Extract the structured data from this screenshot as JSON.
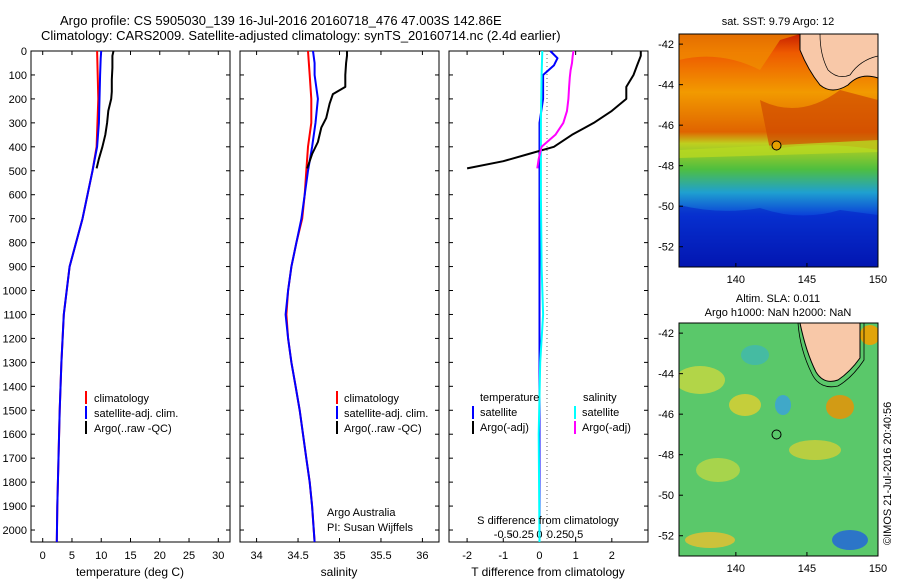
{
  "header": {
    "title_line1": "Argo profile: CS 5905030_139 16-Jul-2016 20160718_476 47.003S 142.86E",
    "title_line2": "Climatology: CARS2009. Satellite-adjusted climatology: synTS_20160714.nc (2.4d earlier)"
  },
  "colors": {
    "climatology": "#ff0000",
    "satellite": "#0000ff",
    "argo": "#000000",
    "salinity_satellite": "#00ffff",
    "salinity_argo": "#ff00ff"
  },
  "chart_data": [
    {
      "type": "line",
      "name": "temperature-profile",
      "xlabel": "temperature (deg C)",
      "ylabel": "",
      "xlim": [
        -2,
        32
      ],
      "ylim": [
        2050,
        0
      ],
      "xticks": [
        0,
        5,
        10,
        15,
        20,
        25,
        30
      ],
      "yticks": [
        0,
        100,
        200,
        300,
        400,
        500,
        600,
        700,
        800,
        900,
        1000,
        1100,
        1200,
        1300,
        1400,
        1500,
        1600,
        1700,
        1800,
        1900,
        2000
      ],
      "legend": [
        "climatology",
        "satellite-adj. clim.",
        "Argo(..raw -QC)"
      ],
      "series": [
        {
          "name": "climatology",
          "color": "#ff0000",
          "depth": [
            0,
            100,
            200,
            400,
            500,
            700,
            900,
            1100,
            1300,
            1500,
            1700,
            1900,
            2050
          ],
          "values": [
            9.3,
            9.4,
            9.5,
            9.2,
            8.5,
            6.8,
            4.6,
            3.6,
            3.2,
            2.9,
            2.7,
            2.5,
            2.4
          ]
        },
        {
          "name": "satellite-adj. clim.",
          "color": "#0000ff",
          "depth": [
            0,
            30,
            100,
            200,
            300,
            400,
            500,
            700,
            900,
            1100,
            1300,
            1500,
            1700,
            1900,
            2050
          ],
          "values": [
            10.0,
            9.9,
            9.8,
            9.7,
            9.6,
            9.3,
            8.5,
            6.8,
            4.6,
            3.6,
            3.2,
            2.9,
            2.7,
            2.5,
            2.4
          ]
        },
        {
          "name": "Argo(..raw -QC)",
          "color": "#000000",
          "depth": [
            0,
            20,
            70,
            120,
            170,
            200,
            250,
            300,
            350,
            400,
            450,
            490
          ],
          "values": [
            12.1,
            11.9,
            11.9,
            11.8,
            11.8,
            11.7,
            11.2,
            11.0,
            10.7,
            10.2,
            9.6,
            9.2
          ]
        }
      ]
    },
    {
      "type": "line",
      "name": "salinity-profile",
      "xlabel": "salinity",
      "xlim": [
        33.8,
        36.2
      ],
      "ylim": [
        2050,
        0
      ],
      "xticks": [
        34,
        34.5,
        35,
        35.5,
        36
      ],
      "xticklabels": [
        "34",
        "34.5",
        "35",
        "35.5",
        "36"
      ],
      "legend": [
        "climatology",
        "satellite-adj. clim.",
        "Argo(..raw -QC)"
      ],
      "annotation": [
        "Argo Australia",
        "PI: Susan Wijffels"
      ],
      "series": [
        {
          "name": "climatology",
          "color": "#ff0000",
          "depth": [
            0,
            100,
            200,
            300,
            400,
            500,
            600,
            700,
            800,
            900,
            1000,
            1100,
            1200,
            1300,
            1400,
            1500,
            1600,
            1700,
            1800,
            1900,
            2050
          ],
          "values": [
            34.62,
            34.64,
            34.66,
            34.66,
            34.62,
            34.6,
            34.58,
            34.55,
            34.48,
            34.42,
            34.38,
            34.36,
            34.38,
            34.42,
            34.47,
            34.52,
            34.56,
            34.6,
            34.64,
            34.67,
            34.7
          ]
        },
        {
          "name": "satellite-adj. clim.",
          "color": "#0000ff",
          "depth": [
            0,
            50,
            100,
            200,
            300,
            400,
            500,
            600,
            700,
            800,
            900,
            1000,
            1100,
            1200,
            1300,
            1400,
            1500,
            1600,
            1700,
            1800,
            1900,
            2050
          ],
          "values": [
            34.68,
            34.7,
            34.7,
            34.74,
            34.71,
            34.67,
            34.62,
            34.58,
            34.54,
            34.48,
            34.42,
            34.38,
            34.35,
            34.38,
            34.42,
            34.47,
            34.52,
            34.56,
            34.6,
            34.64,
            34.67,
            34.7
          ]
        },
        {
          "name": "Argo(..raw -QC)",
          "color": "#000000",
          "depth": [
            0,
            20,
            50,
            100,
            150,
            180,
            220,
            280,
            320,
            380,
            430,
            490
          ],
          "values": [
            35.09,
            35.09,
            35.08,
            35.07,
            35.07,
            34.92,
            34.88,
            34.84,
            34.78,
            34.74,
            34.67,
            34.61
          ]
        }
      ]
    },
    {
      "type": "line",
      "name": "difference-profile",
      "xlabel": "T difference from climatology",
      "xlabel_top": "S difference from climatology",
      "xlim": [
        -2.5,
        3.0
      ],
      "ylim": [
        2050,
        0
      ],
      "xticks": [
        -2,
        -1,
        0,
        1,
        2
      ],
      "sticks": [
        -0.5,
        -0.25,
        0,
        0.25,
        0.5
      ],
      "sticklabels": [
        "-0.5",
        "-0.25",
        "0",
        "0.25",
        "0.5"
      ],
      "legend_temperature": {
        "title": "temperature",
        "items": [
          "satellite",
          "Argo(-adj)"
        ]
      },
      "legend_salinity": {
        "title": "salinity",
        "items": [
          "satellite",
          "Argo(-adj)"
        ]
      },
      "series": [
        {
          "name": "temperature satellite",
          "color": "#0000ff",
          "depth": [
            0,
            30,
            60,
            100,
            200,
            300,
            400,
            600,
            1000,
            1400,
            2050
          ],
          "values": [
            0.3,
            0.5,
            0.4,
            0.1,
            0.1,
            0.0,
            0.0,
            0.0,
            0.0,
            0.0,
            0.0
          ]
        },
        {
          "name": "temperature Argo(-adj)",
          "color": "#000000",
          "depth": [
            0,
            20,
            60,
            100,
            150,
            200,
            250,
            300,
            350,
            400,
            430,
            460,
            490
          ],
          "values": [
            2.8,
            2.8,
            2.7,
            2.6,
            2.4,
            2.4,
            2.0,
            1.5,
            0.9,
            0.4,
            -0.3,
            -1.0,
            -2.0
          ]
        },
        {
          "name": "salinity satellite",
          "color": "#00ffff",
          "depth": [
            0,
            100,
            300,
            600,
            900,
            1100,
            1300,
            1600,
            2050
          ],
          "values": [
            0.04,
            0.03,
            0.02,
            0.02,
            0.03,
            0.05,
            0.01,
            -0.01,
            0.0
          ]
        },
        {
          "name": "salinity Argo(-adj)",
          "color": "#ff00ff",
          "depth": [
            0,
            20,
            50,
            80,
            110,
            150,
            200,
            250,
            300,
            350,
            400,
            450,
            490
          ],
          "values": [
            0.47,
            0.46,
            0.45,
            0.43,
            0.42,
            0.41,
            0.4,
            0.38,
            0.33,
            0.22,
            0.03,
            -0.01,
            -0.03
          ]
        }
      ]
    },
    {
      "type": "heatmap",
      "name": "sst-map",
      "title": "sat. SST: 9.79 Argo: 12",
      "xlim": [
        136,
        150
      ],
      "ylim": [
        -53,
        -41.5
      ],
      "xticks": [
        140,
        145,
        150
      ],
      "yticks": [
        -52,
        -50,
        -48,
        -46,
        -44,
        -42
      ],
      "argo_position": {
        "lon": 142.86,
        "lat": -47.003
      }
    },
    {
      "type": "heatmap",
      "name": "sla-map",
      "title": "Altim. SLA: 0.011",
      "subtitle": "Argo h1000: NaN h2000: NaN",
      "xlim": [
        136,
        150
      ],
      "ylim": [
        -53,
        -41.5
      ],
      "xticks": [
        140,
        145,
        150
      ],
      "yticks": [
        -52,
        -50,
        -48,
        -46,
        -44,
        -42
      ],
      "argo_position": {
        "lon": 142.86,
        "lat": -47.003
      }
    }
  ],
  "credit": "©IMOS 21-Jul-2016 20:40:56"
}
